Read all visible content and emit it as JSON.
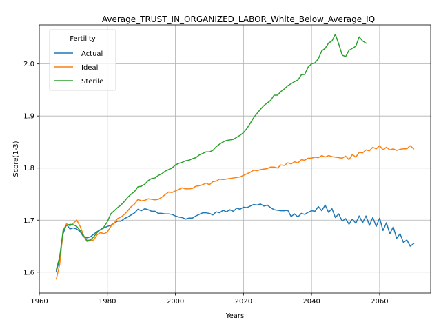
{
  "chart_data": {
    "type": "line",
    "title": "Average_TRUST_IN_ORGANIZED_LABOR_White_Below_Average_IQ",
    "xlabel": "Years",
    "ylabel": "Score(1-3)",
    "xlim": [
      1960,
      2075
    ],
    "ylim": [
      1.56,
      2.075
    ],
    "x_ticks": [
      1960,
      1980,
      2000,
      2020,
      2040,
      2060
    ],
    "y_ticks": [
      1.6,
      1.7,
      1.8,
      1.9,
      2.0
    ],
    "x_tick_labels": [
      "1960",
      "1980",
      "2000",
      "2020",
      "2040",
      "2060"
    ],
    "y_tick_labels": [
      "1.6",
      "1.7",
      "1.8",
      "1.9",
      "2.0"
    ],
    "grid": true,
    "legend": {
      "title": "Fertility",
      "placement": "top-left"
    },
    "series": [
      {
        "name": "Actual",
        "color": "#1f77b4",
        "points": [
          [
            1965,
            1.602
          ],
          [
            1966,
            1.625
          ],
          [
            1967,
            1.674
          ],
          [
            1968,
            1.692
          ],
          [
            1969,
            1.683
          ],
          [
            1970,
            1.685
          ],
          [
            1971,
            1.683
          ],
          [
            1972,
            1.678
          ],
          [
            1973,
            1.668
          ],
          [
            1974,
            1.666
          ],
          [
            1975,
            1.668
          ],
          [
            1976,
            1.673
          ],
          [
            1977,
            1.678
          ],
          [
            1978,
            1.682
          ],
          [
            1979,
            1.685
          ],
          [
            1980,
            1.688
          ],
          [
            1981,
            1.69
          ],
          [
            1982,
            1.694
          ],
          [
            1983,
            1.698
          ],
          [
            1984,
            1.698
          ],
          [
            1985,
            1.703
          ],
          [
            1986,
            1.706
          ],
          [
            1987,
            1.71
          ],
          [
            1988,
            1.714
          ],
          [
            1989,
            1.721
          ],
          [
            1990,
            1.718
          ],
          [
            1991,
            1.722
          ],
          [
            1992,
            1.72
          ],
          [
            1993,
            1.717
          ],
          [
            1994,
            1.717
          ],
          [
            1995,
            1.713
          ],
          [
            1996,
            1.713
          ],
          [
            1997,
            1.712
          ],
          [
            1998,
            1.712
          ],
          [
            1999,
            1.711
          ],
          [
            2000,
            1.708
          ],
          [
            2001,
            1.706
          ],
          [
            2002,
            1.705
          ],
          [
            2003,
            1.702
          ],
          [
            2004,
            1.704
          ],
          [
            2005,
            1.704
          ],
          [
            2006,
            1.708
          ],
          [
            2007,
            1.711
          ],
          [
            2008,
            1.714
          ],
          [
            2009,
            1.714
          ],
          [
            2010,
            1.713
          ],
          [
            2011,
            1.71
          ],
          [
            2012,
            1.716
          ],
          [
            2013,
            1.714
          ],
          [
            2014,
            1.719
          ],
          [
            2015,
            1.716
          ],
          [
            2016,
            1.72
          ],
          [
            2017,
            1.717
          ],
          [
            2018,
            1.723
          ],
          [
            2019,
            1.721
          ],
          [
            2020,
            1.725
          ],
          [
            2021,
            1.724
          ],
          [
            2022,
            1.727
          ],
          [
            2023,
            1.73
          ],
          [
            2024,
            1.729
          ],
          [
            2025,
            1.731
          ],
          [
            2026,
            1.727
          ],
          [
            2027,
            1.729
          ],
          [
            2028,
            1.724
          ],
          [
            2029,
            1.72
          ],
          [
            2030,
            1.719
          ],
          [
            2031,
            1.718
          ],
          [
            2032,
            1.718
          ],
          [
            2033,
            1.719
          ],
          [
            2034,
            1.707
          ],
          [
            2035,
            1.712
          ],
          [
            2036,
            1.706
          ],
          [
            2037,
            1.713
          ],
          [
            2038,
            1.711
          ],
          [
            2039,
            1.715
          ],
          [
            2040,
            1.718
          ],
          [
            2041,
            1.717
          ],
          [
            2042,
            1.726
          ],
          [
            2043,
            1.718
          ],
          [
            2044,
            1.729
          ],
          [
            2045,
            1.715
          ],
          [
            2046,
            1.722
          ],
          [
            2047,
            1.705
          ],
          [
            2048,
            1.712
          ],
          [
            2049,
            1.698
          ],
          [
            2050,
            1.703
          ],
          [
            2051,
            1.692
          ],
          [
            2052,
            1.702
          ],
          [
            2053,
            1.694
          ],
          [
            2054,
            1.708
          ],
          [
            2055,
            1.695
          ],
          [
            2056,
            1.708
          ],
          [
            2057,
            1.69
          ],
          [
            2058,
            1.705
          ],
          [
            2059,
            1.688
          ],
          [
            2060,
            1.704
          ],
          [
            2061,
            1.68
          ],
          [
            2062,
            1.695
          ],
          [
            2063,
            1.674
          ],
          [
            2064,
            1.687
          ],
          [
            2065,
            1.665
          ],
          [
            2066,
            1.674
          ],
          [
            2067,
            1.657
          ],
          [
            2068,
            1.662
          ],
          [
            2069,
            1.65
          ],
          [
            2070,
            1.655
          ]
        ]
      },
      {
        "name": "Ideal",
        "color": "#ff7f0e",
        "points": [
          [
            1965,
            1.587
          ],
          [
            1966,
            1.615
          ],
          [
            1967,
            1.68
          ],
          [
            1968,
            1.693
          ],
          [
            1969,
            1.689
          ],
          [
            1970,
            1.694
          ],
          [
            1971,
            1.7
          ],
          [
            1972,
            1.688
          ],
          [
            1973,
            1.671
          ],
          [
            1974,
            1.659
          ],
          [
            1975,
            1.661
          ],
          [
            1976,
            1.662
          ],
          [
            1977,
            1.672
          ],
          [
            1978,
            1.676
          ],
          [
            1979,
            1.674
          ],
          [
            1980,
            1.677
          ],
          [
            1981,
            1.688
          ],
          [
            1982,
            1.694
          ],
          [
            1983,
            1.703
          ],
          [
            1984,
            1.706
          ],
          [
            1985,
            1.711
          ],
          [
            1986,
            1.718
          ],
          [
            1987,
            1.726
          ],
          [
            1988,
            1.731
          ],
          [
            1989,
            1.74
          ],
          [
            1990,
            1.737
          ],
          [
            1991,
            1.738
          ],
          [
            1992,
            1.741
          ],
          [
            1993,
            1.74
          ],
          [
            1994,
            1.739
          ],
          [
            1995,
            1.74
          ],
          [
            1996,
            1.744
          ],
          [
            1997,
            1.749
          ],
          [
            1998,
            1.754
          ],
          [
            1999,
            1.753
          ],
          [
            2000,
            1.756
          ],
          [
            2001,
            1.759
          ],
          [
            2002,
            1.762
          ],
          [
            2003,
            1.76
          ],
          [
            2004,
            1.76
          ],
          [
            2005,
            1.761
          ],
          [
            2006,
            1.765
          ],
          [
            2007,
            1.766
          ],
          [
            2008,
            1.768
          ],
          [
            2009,
            1.771
          ],
          [
            2010,
            1.768
          ],
          [
            2011,
            1.774
          ],
          [
            2012,
            1.775
          ],
          [
            2013,
            1.779
          ],
          [
            2014,
            1.778
          ],
          [
            2015,
            1.779
          ],
          [
            2016,
            1.78
          ],
          [
            2017,
            1.781
          ],
          [
            2018,
            1.782
          ],
          [
            2019,
            1.783
          ],
          [
            2020,
            1.786
          ],
          [
            2021,
            1.789
          ],
          [
            2022,
            1.792
          ],
          [
            2023,
            1.796
          ],
          [
            2024,
            1.795
          ],
          [
            2025,
            1.797
          ],
          [
            2026,
            1.798
          ],
          [
            2027,
            1.799
          ],
          [
            2028,
            1.802
          ],
          [
            2029,
            1.802
          ],
          [
            2030,
            1.8
          ],
          [
            2031,
            1.806
          ],
          [
            2032,
            1.805
          ],
          [
            2033,
            1.81
          ],
          [
            2034,
            1.808
          ],
          [
            2035,
            1.812
          ],
          [
            2036,
            1.81
          ],
          [
            2037,
            1.816
          ],
          [
            2038,
            1.815
          ],
          [
            2039,
            1.819
          ],
          [
            2040,
            1.819
          ],
          [
            2041,
            1.821
          ],
          [
            2042,
            1.82
          ],
          [
            2043,
            1.824
          ],
          [
            2044,
            1.821
          ],
          [
            2045,
            1.824
          ],
          [
            2046,
            1.822
          ],
          [
            2047,
            1.821
          ],
          [
            2048,
            1.82
          ],
          [
            2049,
            1.819
          ],
          [
            2050,
            1.823
          ],
          [
            2051,
            1.816
          ],
          [
            2052,
            1.826
          ],
          [
            2053,
            1.821
          ],
          [
            2054,
            1.83
          ],
          [
            2055,
            1.829
          ],
          [
            2056,
            1.835
          ],
          [
            2057,
            1.833
          ],
          [
            2058,
            1.84
          ],
          [
            2059,
            1.837
          ],
          [
            2060,
            1.843
          ],
          [
            2061,
            1.835
          ],
          [
            2062,
            1.84
          ],
          [
            2063,
            1.835
          ],
          [
            2064,
            1.837
          ],
          [
            2065,
            1.834
          ],
          [
            2066,
            1.836
          ],
          [
            2067,
            1.837
          ],
          [
            2068,
            1.837
          ],
          [
            2069,
            1.843
          ],
          [
            2070,
            1.837
          ]
        ]
      },
      {
        "name": "Sterile",
        "color": "#2ca02c",
        "points": [
          [
            1965,
            1.605
          ],
          [
            1966,
            1.63
          ],
          [
            1967,
            1.68
          ],
          [
            1968,
            1.69
          ],
          [
            1969,
            1.692
          ],
          [
            1970,
            1.691
          ],
          [
            1971,
            1.688
          ],
          [
            1972,
            1.68
          ],
          [
            1973,
            1.67
          ],
          [
            1974,
            1.661
          ],
          [
            1975,
            1.662
          ],
          [
            1976,
            1.668
          ],
          [
            1977,
            1.676
          ],
          [
            1978,
            1.682
          ],
          [
            1979,
            1.687
          ],
          [
            1980,
            1.697
          ],
          [
            1981,
            1.712
          ],
          [
            1982,
            1.718
          ],
          [
            1983,
            1.724
          ],
          [
            1984,
            1.729
          ],
          [
            1985,
            1.736
          ],
          [
            1986,
            1.744
          ],
          [
            1987,
            1.75
          ],
          [
            1988,
            1.755
          ],
          [
            1989,
            1.764
          ],
          [
            1990,
            1.765
          ],
          [
            1991,
            1.769
          ],
          [
            1992,
            1.776
          ],
          [
            1993,
            1.78
          ],
          [
            1994,
            1.781
          ],
          [
            1995,
            1.786
          ],
          [
            1996,
            1.789
          ],
          [
            1997,
            1.794
          ],
          [
            1998,
            1.797
          ],
          [
            1999,
            1.8
          ],
          [
            2000,
            1.806
          ],
          [
            2001,
            1.809
          ],
          [
            2002,
            1.811
          ],
          [
            2003,
            1.814
          ],
          [
            2004,
            1.815
          ],
          [
            2005,
            1.818
          ],
          [
            2006,
            1.82
          ],
          [
            2007,
            1.825
          ],
          [
            2008,
            1.828
          ],
          [
            2009,
            1.831
          ],
          [
            2010,
            1.831
          ],
          [
            2011,
            1.834
          ],
          [
            2012,
            1.841
          ],
          [
            2013,
            1.846
          ],
          [
            2014,
            1.85
          ],
          [
            2015,
            1.853
          ],
          [
            2016,
            1.854
          ],
          [
            2017,
            1.855
          ],
          [
            2018,
            1.859
          ],
          [
            2019,
            1.863
          ],
          [
            2020,
            1.868
          ],
          [
            2021,
            1.876
          ],
          [
            2022,
            1.886
          ],
          [
            2023,
            1.897
          ],
          [
            2024,
            1.905
          ],
          [
            2025,
            1.913
          ],
          [
            2026,
            1.92
          ],
          [
            2027,
            1.925
          ],
          [
            2028,
            1.93
          ],
          [
            2029,
            1.94
          ],
          [
            2030,
            1.94
          ],
          [
            2031,
            1.947
          ],
          [
            2032,
            1.952
          ],
          [
            2033,
            1.958
          ],
          [
            2034,
            1.962
          ],
          [
            2035,
            1.966
          ],
          [
            2036,
            1.969
          ],
          [
            2037,
            1.979
          ],
          [
            2038,
            1.98
          ],
          [
            2039,
            1.994
          ],
          [
            2040,
            2.0
          ],
          [
            2041,
            2.002
          ],
          [
            2042,
            2.01
          ],
          [
            2043,
            2.025
          ],
          [
            2044,
            2.03
          ],
          [
            2045,
            2.04
          ],
          [
            2046,
            2.044
          ],
          [
            2047,
            2.057
          ],
          [
            2048,
            2.038
          ],
          [
            2049,
            2.017
          ],
          [
            2050,
            2.014
          ],
          [
            2051,
            2.026
          ],
          [
            2052,
            2.03
          ],
          [
            2053,
            2.034
          ],
          [
            2054,
            2.052
          ],
          [
            2055,
            2.044
          ],
          [
            2056,
            2.04
          ]
        ]
      }
    ]
  }
}
